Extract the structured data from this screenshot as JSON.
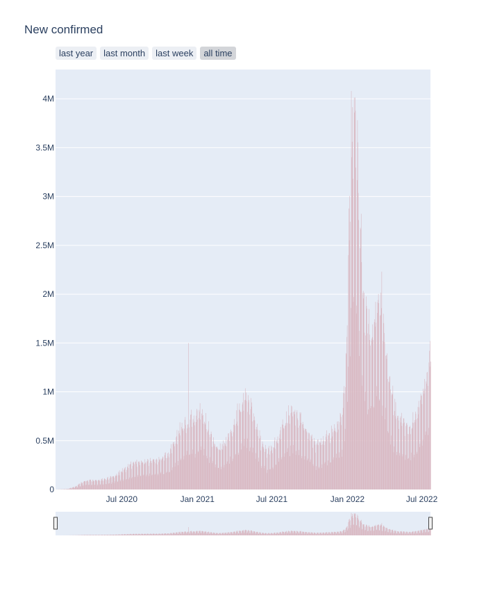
{
  "title": "New confirmed",
  "range_buttons": [
    {
      "label": "last year",
      "active": false
    },
    {
      "label": "last month",
      "active": false
    },
    {
      "label": "last week",
      "active": false
    },
    {
      "label": "all time",
      "active": true
    }
  ],
  "colors": {
    "plot_bg": "#e5ecf6",
    "bar": "#d9b8c2",
    "grid": "#ffffff",
    "text": "#2a3f5f"
  },
  "chart_data": {
    "type": "bar",
    "title": "New confirmed",
    "x_start": "2020-01-22",
    "x_end": "2022-07-22",
    "xlim": [
      "2020-01-22",
      "2022-07-22"
    ],
    "ylim": [
      0,
      4300000
    ],
    "x_ticks": [
      {
        "date": "2020-07-01",
        "label": "Jul 2020"
      },
      {
        "date": "2021-01-01",
        "label": "Jan 2021"
      },
      {
        "date": "2021-07-01",
        "label": "Jul 2021"
      },
      {
        "date": "2022-01-01",
        "label": "Jan 2022"
      },
      {
        "date": "2022-07-01",
        "label": "Jul 2022"
      }
    ],
    "y_ticks": [
      {
        "value": 0,
        "label": "0"
      },
      {
        "value": 500000,
        "label": "0.5M"
      },
      {
        "value": 1000000,
        "label": "1M"
      },
      {
        "value": 1500000,
        "label": "1.5M"
      },
      {
        "value": 2000000,
        "label": "2M"
      },
      {
        "value": 2500000,
        "label": "2.5M"
      },
      {
        "value": 3000000,
        "label": "3M"
      },
      {
        "value": 3500000,
        "label": "3.5M"
      },
      {
        "value": 4000000,
        "label": "4M"
      }
    ],
    "envelope": [
      [
        "2020-01-22",
        0
      ],
      [
        "2020-02-20",
        5000
      ],
      [
        "2020-03-10",
        30000
      ],
      [
        "2020-03-25",
        70000
      ],
      [
        "2020-04-10",
        90000
      ],
      [
        "2020-05-01",
        85000
      ],
      [
        "2020-05-20",
        100000
      ],
      [
        "2020-06-10",
        130000
      ],
      [
        "2020-07-05",
        190000
      ],
      [
        "2020-07-25",
        250000
      ],
      [
        "2020-08-15",
        270000
      ],
      [
        "2020-09-10",
        280000
      ],
      [
        "2020-10-01",
        300000
      ],
      [
        "2020-10-25",
        350000
      ],
      [
        "2020-11-10",
        520000
      ],
      [
        "2020-11-25",
        620000
      ],
      [
        "2020-12-10",
        680000
      ],
      [
        "2020-12-25",
        700000
      ],
      [
        "2021-01-08",
        800000
      ],
      [
        "2021-01-25",
        620000
      ],
      [
        "2021-02-10",
        450000
      ],
      [
        "2021-02-25",
        400000
      ],
      [
        "2021-03-10",
        460000
      ],
      [
        "2021-03-25",
        600000
      ],
      [
        "2021-04-10",
        750000
      ],
      [
        "2021-04-25",
        880000
      ],
      [
        "2021-05-05",
        880000
      ],
      [
        "2021-05-20",
        700000
      ],
      [
        "2021-06-05",
        450000
      ],
      [
        "2021-06-20",
        360000
      ],
      [
        "2021-07-05",
        420000
      ],
      [
        "2021-07-20",
        550000
      ],
      [
        "2021-08-05",
        700000
      ],
      [
        "2021-08-20",
        780000
      ],
      [
        "2021-09-05",
        700000
      ],
      [
        "2021-09-25",
        560000
      ],
      [
        "2021-10-15",
        440000
      ],
      [
        "2021-11-01",
        470000
      ],
      [
        "2021-11-20",
        540000
      ],
      [
        "2021-12-05",
        620000
      ],
      [
        "2021-12-20",
        760000
      ],
      [
        "2021-12-28",
        1200000
      ],
      [
        "2022-01-03",
        2300000
      ],
      [
        "2022-01-10",
        3300000
      ],
      [
        "2022-01-16",
        3700000
      ],
      [
        "2022-01-22",
        3550000
      ],
      [
        "2022-01-30",
        2700000
      ],
      [
        "2022-02-10",
        1800000
      ],
      [
        "2022-02-25",
        1500000
      ],
      [
        "2022-03-10",
        1750000
      ],
      [
        "2022-03-20",
        1850000
      ],
      [
        "2022-04-01",
        1450000
      ],
      [
        "2022-04-15",
        1000000
      ],
      [
        "2022-04-28",
        750000
      ],
      [
        "2022-05-15",
        650000
      ],
      [
        "2022-05-30",
        580000
      ],
      [
        "2022-06-15",
        700000
      ],
      [
        "2022-06-30",
        900000
      ],
      [
        "2022-07-15",
        1100000
      ],
      [
        "2022-07-22",
        1300000
      ]
    ],
    "spikes": [
      [
        "2020-12-10",
        1500000
      ],
      [
        "2022-01-10",
        4080000
      ],
      [
        "2022-03-25",
        2230000
      ],
      [
        "2022-07-21",
        1520000
      ]
    ]
  }
}
